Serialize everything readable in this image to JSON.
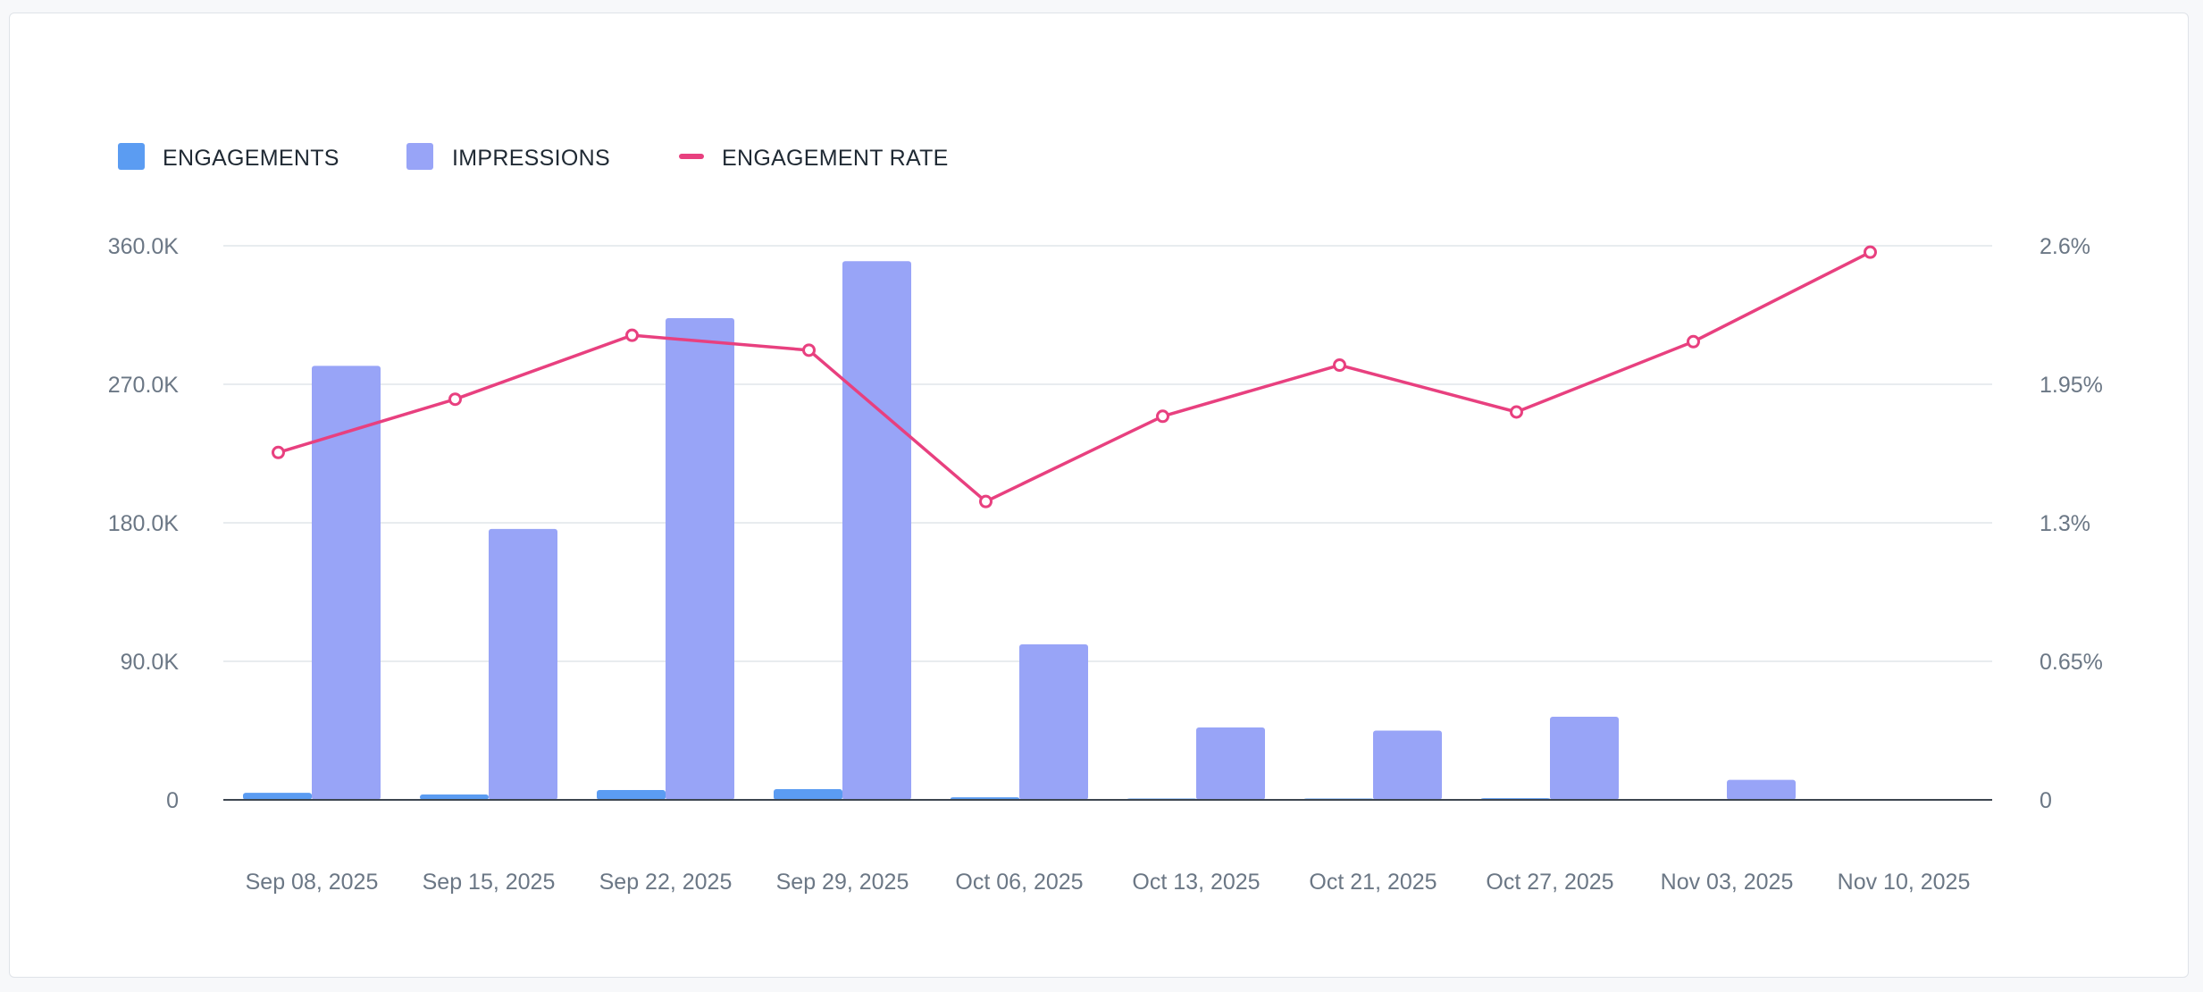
{
  "chart_data": {
    "type": "bar",
    "categories": [
      "Sep 08, 2025",
      "Sep 15, 2025",
      "Sep 22, 2025",
      "Sep 29, 2025",
      "Oct 06, 2025",
      "Oct 13, 2025",
      "Oct 21, 2025",
      "Oct 27, 2025",
      "Nov 03, 2025",
      "Nov 10, 2025"
    ],
    "series": [
      {
        "name": "ENGAGEMENTS",
        "type": "bar",
        "axis": "left",
        "color": "#5b9cf2",
        "values": [
          4600,
          3500,
          6400,
          7000,
          1700,
          900,
          900,
          1100,
          300,
          0
        ]
      },
      {
        "name": "IMPRESSIONS",
        "type": "bar",
        "axis": "left",
        "color": "#98a4f7",
        "values": [
          282000,
          176000,
          313000,
          350000,
          101000,
          47000,
          45000,
          54000,
          13000,
          0
        ]
      },
      {
        "name": "ENGAGEMENT RATE",
        "type": "line",
        "axis": "right",
        "color": "#e8407f",
        "values": [
          1.63,
          1.88,
          2.18,
          2.11,
          1.4,
          1.8,
          2.04,
          1.82,
          2.15,
          2.57
        ]
      }
    ],
    "left_axis": {
      "ylim": [
        0,
        360000
      ],
      "ticks": [
        "0",
        "90.0K",
        "180.0K",
        "270.0K",
        "360.0K"
      ]
    },
    "right_axis": {
      "ylim": [
        0,
        2.6
      ],
      "ticks": [
        "0",
        "0.65%",
        "1.3%",
        "1.95%",
        "2.6%"
      ]
    },
    "legend": "top-left",
    "grid": true
  }
}
